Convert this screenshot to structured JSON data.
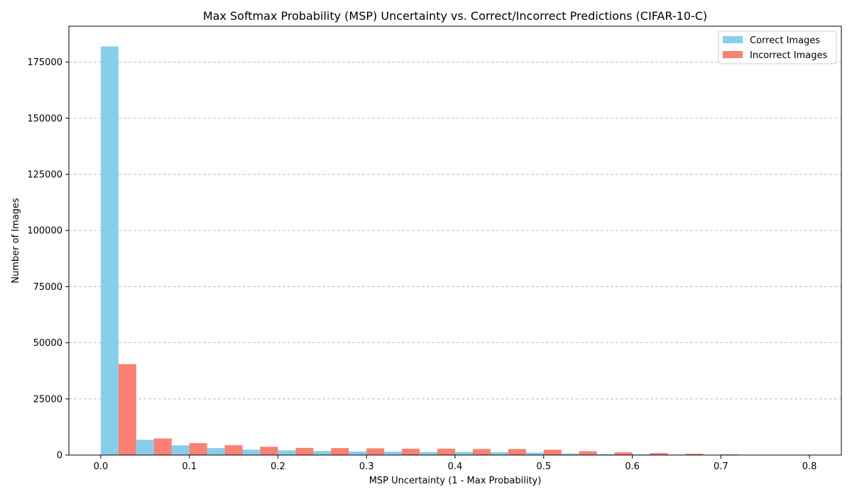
{
  "chart_data": {
    "type": "bar",
    "title": "Max Softmax Probability (MSP) Uncertainty vs. Correct/Incorrect Predictions (CIFAR-10-C)",
    "xlabel": "MSP Uncertainty (1 - Max Probability)",
    "ylabel": "Number of Images",
    "bin_width": 0.04,
    "bin_starts": [
      0.0,
      0.04,
      0.08,
      0.12,
      0.16,
      0.2,
      0.24,
      0.28,
      0.32,
      0.36,
      0.4,
      0.44,
      0.48,
      0.52,
      0.56,
      0.6,
      0.64,
      0.68,
      0.72,
      0.76,
      0.8
    ],
    "xlim": [
      -0.036,
      0.836
    ],
    "ylim": [
      0,
      191000
    ],
    "xticks": [
      0.0,
      0.1,
      0.2,
      0.3,
      0.4,
      0.5,
      0.6,
      0.7,
      0.8
    ],
    "xtick_labels": [
      "0.0",
      "0.1",
      "0.2",
      "0.3",
      "0.4",
      "0.5",
      "0.6",
      "0.7",
      "0.8"
    ],
    "yticks": [
      0,
      25000,
      50000,
      75000,
      100000,
      125000,
      150000,
      175000
    ],
    "ytick_labels": [
      "0",
      "25000",
      "50000",
      "75000",
      "100000",
      "125000",
      "150000",
      "175000"
    ],
    "grid": "y-dashed",
    "legend_position": "top-right",
    "series": [
      {
        "name": "Correct Images",
        "color": "#87CEEB",
        "values": [
          182000,
          6800,
          4300,
          3100,
          2400,
          2100,
          1800,
          1600,
          1500,
          1400,
          1400,
          1300,
          1100,
          700,
          400,
          300,
          200,
          100,
          50,
          30,
          10
        ]
      },
      {
        "name": "Incorrect Images",
        "color": "#FA8072",
        "values": [
          40500,
          7400,
          5300,
          4400,
          3700,
          3200,
          3100,
          3000,
          2800,
          2800,
          2700,
          2700,
          2400,
          1700,
          1200,
          900,
          600,
          300,
          150,
          100,
          20
        ]
      }
    ]
  }
}
